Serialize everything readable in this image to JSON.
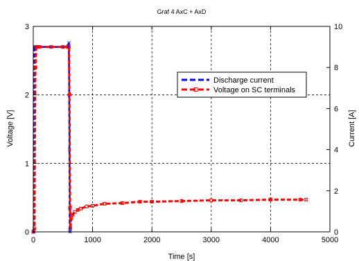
{
  "chart_data": {
    "type": "line",
    "title": "Graf 4 AxC + AxD",
    "xlabel": "Time [s]",
    "ylabel_left": "Voltage [V]",
    "ylabel_right": "Current [A]",
    "xlim": [
      0,
      5000
    ],
    "ylim_left": [
      0,
      3
    ],
    "ylim_right": [
      0,
      10
    ],
    "x_ticks": [
      "0",
      "1000",
      "2000",
      "3000",
      "4000",
      "5000"
    ],
    "y_ticks_left": [
      "0",
      "1",
      "2",
      "3"
    ],
    "y_ticks_right": [
      "0",
      "2",
      "4",
      "6",
      "8",
      "10"
    ],
    "grid": true,
    "legend_position": "upper-right",
    "series": [
      {
        "name": "Discharge current",
        "axis": "right",
        "color": "#0000ff",
        "style": "dashed",
        "marker": "x",
        "x": [
          0,
          10,
          20,
          30,
          580,
          590,
          600,
          610,
          615,
          620
        ],
        "y": [
          0,
          0,
          9.0,
          9.0,
          9.0,
          9.05,
          9.2,
          4.0,
          0.1,
          0
        ]
      },
      {
        "name": "Voltage on SC terminals",
        "axis": "left",
        "color": "#ff0000",
        "style": "dashed",
        "marker": "square",
        "x": [
          0,
          20,
          35,
          50,
          100,
          300,
          500,
          580,
          600,
          610,
          620,
          625,
          640,
          660,
          700,
          750,
          800,
          900,
          1000,
          1200,
          1500,
          1800,
          2000,
          2500,
          3000,
          3500,
          4000,
          4500,
          4600
        ],
        "y": [
          0,
          0.05,
          2.4,
          2.7,
          2.7,
          2.7,
          2.7,
          2.7,
          2.7,
          2.0,
          0.35,
          0.05,
          0.2,
          0.25,
          0.29,
          0.32,
          0.34,
          0.37,
          0.38,
          0.41,
          0.42,
          0.44,
          0.44,
          0.45,
          0.46,
          0.46,
          0.47,
          0.47,
          0.47
        ]
      }
    ]
  }
}
